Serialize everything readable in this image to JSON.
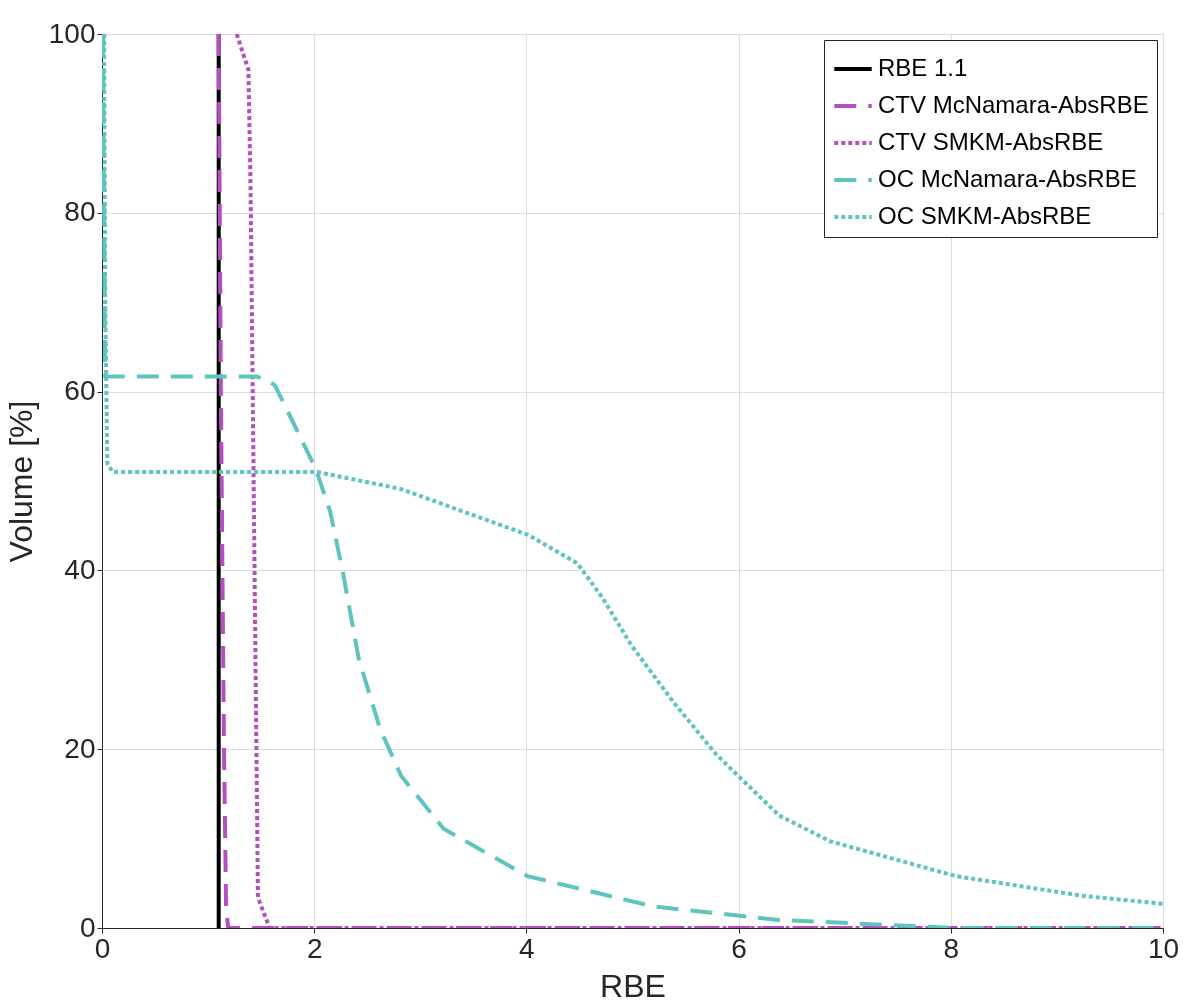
{
  "chart_data": {
    "type": "line",
    "xlabel": "RBE",
    "ylabel": "Volume [%]",
    "xlim": [
      0,
      10
    ],
    "ylim": [
      0,
      100
    ],
    "xticks": [
      0,
      2,
      4,
      6,
      8,
      10
    ],
    "yticks": [
      0,
      20,
      40,
      60,
      80,
      100
    ],
    "grid": true,
    "legend": "top right",
    "marker": "none",
    "series": [
      {
        "name": "RBE 1.1",
        "color": "#000000",
        "line_style": "solid",
        "x": [
          1.1,
          1.1
        ],
        "values": [
          0,
          100
        ]
      },
      {
        "name": "CTV McNamara-AbsRBE",
        "color": "#b54fc0",
        "line_style": "dashed",
        "x": [
          1.1,
          1.12,
          1.15,
          1.17,
          1.19,
          10
        ],
        "values": [
          100,
          60,
          20,
          2,
          0,
          0
        ]
      },
      {
        "name": "CTV SMKM-AbsRBE",
        "color": "#b54fc0",
        "line_style": "dotted",
        "x": [
          1.27,
          1.38,
          1.4,
          1.47,
          1.58,
          10
        ],
        "values": [
          100,
          96,
          83,
          3.4,
          0,
          0
        ]
      },
      {
        "name": "OC McNamara-AbsRBE",
        "color": "#5ec4c0",
        "line_style": "dashed",
        "x": [
          0.01,
          0.02,
          0.03,
          1.45,
          1.55,
          1.63,
          2.01,
          2.15,
          2.27,
          2.42,
          2.62,
          2.82,
          3.22,
          4.01,
          5.2,
          6.38,
          8.05,
          10
        ],
        "values": [
          100,
          80,
          61.7,
          61.7,
          61.3,
          60.7,
          51.5,
          46.6,
          39.8,
          30.1,
          22.3,
          17,
          11.1,
          5.8,
          2.4,
          0.9,
          0,
          0
        ]
      },
      {
        "name": "OC SMKM-AbsRBE",
        "color": "#5ec4c0",
        "line_style": "dotted",
        "x": [
          0.02,
          0.03,
          0.05,
          0.1,
          1.63,
          2.03,
          2.82,
          3.61,
          4.01,
          4.48,
          4.72,
          4.99,
          5.39,
          5.79,
          6.38,
          6.86,
          8.05,
          9.24,
          10
        ],
        "values": [
          100,
          70,
          52,
          51,
          51,
          51,
          49.1,
          45.7,
          44,
          40.8,
          36.9,
          31.6,
          25.2,
          19.4,
          12.6,
          9.7,
          5.8,
          3.6,
          2.7
        ]
      }
    ]
  }
}
